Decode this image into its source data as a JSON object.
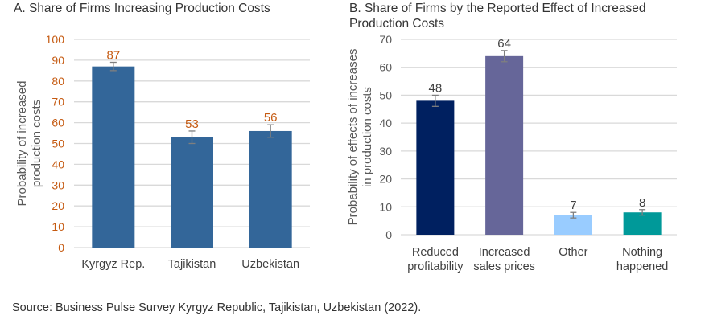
{
  "source": "Source: Business Pulse Survey Kyrgyz Republic, Tajikistan, Uzbekistan (2022).",
  "chart_data": [
    {
      "type": "bar",
      "title": "A. Share of Firms Increasing Production Costs",
      "xlabel": "",
      "ylabel_lines": [
        "Probability of increased",
        "production costs"
      ],
      "ylabel": "Probability of increased production costs",
      "categories": [
        "Kyrgyz Rep.",
        "Tajikistan",
        "Uzbekistan"
      ],
      "values": [
        87,
        53,
        56
      ],
      "data_labels": [
        "87",
        "53",
        "56"
      ],
      "error_bars": [
        [
          85,
          89
        ],
        [
          50,
          56
        ],
        [
          53,
          59
        ]
      ],
      "ylim": [
        0,
        100
      ],
      "yticks": [
        0,
        10,
        20,
        30,
        40,
        50,
        60,
        70,
        80,
        90,
        100
      ],
      "grid": true,
      "bar_color": "#336699",
      "tick_color": "#C55A11",
      "label_color": "#C55A11",
      "legend": "none"
    },
    {
      "type": "bar",
      "title": "B. Share of Firms by the Reported Effect of Increased Production Costs",
      "xlabel": "",
      "ylabel_lines": [
        "Probability of effects of increases",
        "in production costs"
      ],
      "ylabel": "Probability of effects of increases in production costs",
      "categories": [
        "Reduced profitability",
        "Increased sales prices",
        "Other",
        "Nothing happened"
      ],
      "category_lines": [
        [
          "Reduced",
          "profitability"
        ],
        [
          "Increased",
          "sales prices"
        ],
        [
          "Other"
        ],
        [
          "Nothing",
          "happened"
        ]
      ],
      "values": [
        48,
        64,
        7,
        8
      ],
      "data_labels": [
        "48",
        "64",
        "7",
        "8"
      ],
      "error_bars": [
        [
          46,
          50
        ],
        [
          62,
          66
        ],
        [
          6,
          8
        ],
        [
          7,
          9
        ]
      ],
      "ylim": [
        0,
        70
      ],
      "yticks": [
        0,
        10,
        20,
        30,
        40,
        50,
        60,
        70
      ],
      "grid": true,
      "bar_colors": [
        "#002060",
        "#666699",
        "#99CCFF",
        "#009999"
      ],
      "tick_color": "#595959",
      "label_color": "#404040",
      "legend": "none"
    }
  ]
}
